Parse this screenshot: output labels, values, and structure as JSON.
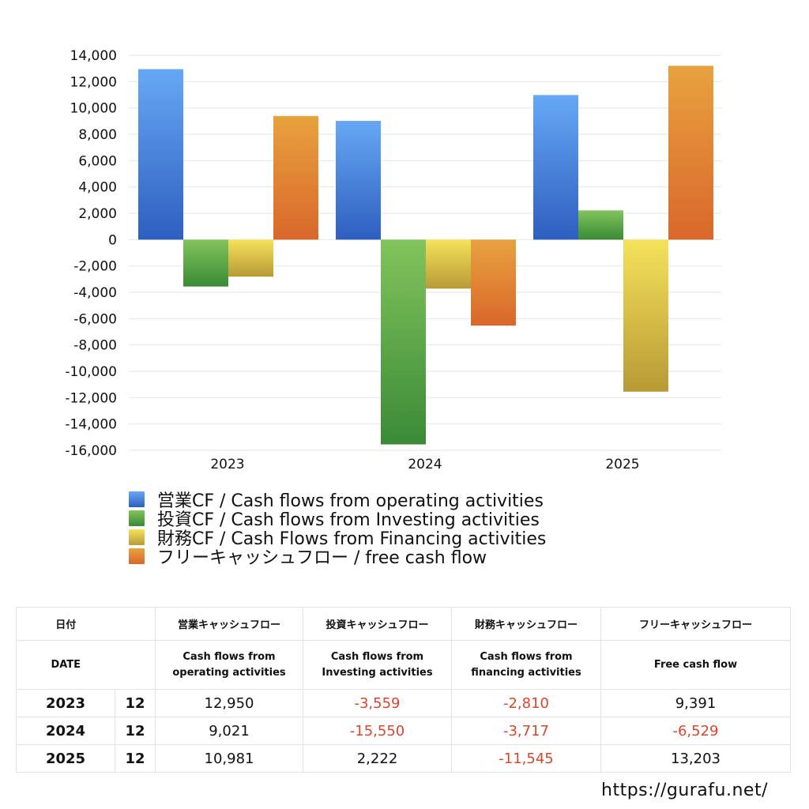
{
  "chart_data": {
    "type": "bar",
    "categories": [
      "2023",
      "2024",
      "2025"
    ],
    "ylim": [
      -16000,
      14000
    ],
    "yticks": [
      "14,000",
      "12,000",
      "10,000",
      "8,000",
      "6,000",
      "4,000",
      "2,000",
      "0",
      "-2,000",
      "-4,000",
      "-6,000",
      "-8,000",
      "-10,000",
      "-12,000",
      "-14,000",
      "-16,000"
    ],
    "grid": true,
    "legend_position": "bottom",
    "series": [
      {
        "name": "営業CF / Cash flows from operating activities",
        "values": [
          12950,
          9021,
          10981
        ],
        "color_top": "#66a8f5",
        "color_bottom": "#2e5fbf"
      },
      {
        "name": "投資CF / Cash flows from Investing activities",
        "values": [
          -3559,
          -15550,
          2222
        ],
        "color_top": "#82c45c",
        "color_bottom": "#3a8a36"
      },
      {
        "name": "財務CF / Cash Flows from Financing activities",
        "values": [
          -2810,
          -3717,
          -11545
        ],
        "color_top": "#f5e25a",
        "color_bottom": "#b89a36"
      },
      {
        "name": "フリーキャッシュフロー / free cash flow",
        "values": [
          9391,
          -6529,
          13203
        ],
        "color_top": "#e8a23e",
        "color_bottom": "#d9672b"
      }
    ]
  },
  "table": {
    "header_jp": {
      "date": "日付",
      "operating": "営業キャッシュフロー",
      "investing": "投資キャッシュフロー",
      "financing": "財務キャッシュフロー",
      "free": "フリーキャッシュフロー"
    },
    "header_en": {
      "date": "DATE",
      "operating_1": "Cash flows from",
      "operating_2": "operating activities",
      "investing_1": "Cash flows from",
      "investing_2": "Investing activities",
      "financing_1": "Cash flows from",
      "financing_2": "financing activities",
      "free": "Free cash flow"
    },
    "rows": [
      {
        "year": "2023",
        "month": "12",
        "operating": "12,950",
        "investing": "-3,559",
        "financing": "-2,810",
        "free": "9,391"
      },
      {
        "year": "2024",
        "month": "12",
        "operating": "9,021",
        "investing": "-15,550",
        "financing": "-3,717",
        "free": "-6,529"
      },
      {
        "year": "2025",
        "month": "12",
        "operating": "10,981",
        "investing": "2,222",
        "financing": "-11,545",
        "free": "13,203"
      }
    ]
  },
  "site_url": "https://gurafu.net/",
  "colors": {
    "negative": "#d9462b",
    "grid": "#e6e6e6"
  }
}
